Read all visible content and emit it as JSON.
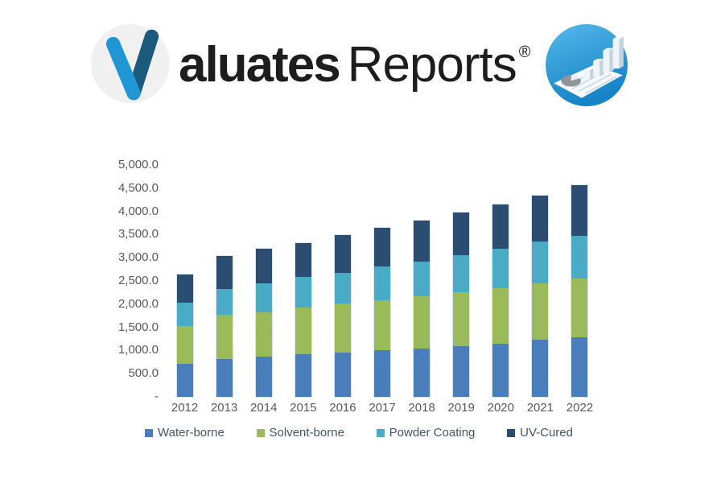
{
  "brand": {
    "wordmark_main": "aluates",
    "wordmark_secondary": "Reports",
    "registered_mark": "®",
    "logo_letter": "V",
    "colors": {
      "v_stroke_light": "#2097d4",
      "v_stroke_dark": "#1b5a7d",
      "v_circle_bg": "#f0f0f1",
      "icon_circle_top": "#55b9ea",
      "icon_circle_bottom": "#1583c6"
    }
  },
  "chart_data": {
    "type": "bar",
    "stacked": true,
    "title": "",
    "xlabel": "",
    "ylabel": "",
    "grid": false,
    "legend_position": "bottom",
    "ylim": [
      0,
      5000
    ],
    "y_tick_labels_top_to_bottom": [
      "5,000.0",
      "4,500.0",
      "4,000.0",
      "3,500.0",
      "3,000.0",
      "2,500.0",
      "2,000.0",
      "1,500.0",
      "1,000.0",
      "500.0",
      "-"
    ],
    "categories": [
      "2012",
      "2013",
      "2014",
      "2015",
      "2016",
      "2017",
      "2018",
      "2019",
      "2020",
      "2021",
      "2022"
    ],
    "series": [
      {
        "name": "Water-borne",
        "color": "#4a7eba",
        "values": [
          710,
          820,
          870,
          920,
          960,
          1000,
          1040,
          1100,
          1150,
          1230,
          1290
        ]
      },
      {
        "name": "Solvent-borne",
        "color": "#9bba59",
        "values": [
          810,
          960,
          960,
          1010,
          1050,
          1090,
          1130,
          1150,
          1190,
          1220,
          1270
        ]
      },
      {
        "name": "Powder Coating",
        "color": "#4aabc6",
        "values": [
          510,
          550,
          620,
          650,
          670,
          720,
          740,
          800,
          860,
          900,
          920
        ]
      },
      {
        "name": "UV-Cured",
        "color": "#2b4d71",
        "values": [
          600,
          710,
          740,
          740,
          810,
          840,
          900,
          930,
          960,
          1000,
          1080
        ]
      }
    ],
    "totals": [
      2630,
      3040,
      3190,
      3320,
      3490,
      3650,
      3810,
      3980,
      4160,
      4350,
      4560
    ]
  },
  "axis": {
    "text_color": "#595959",
    "legend_text_color": "#44546a"
  }
}
